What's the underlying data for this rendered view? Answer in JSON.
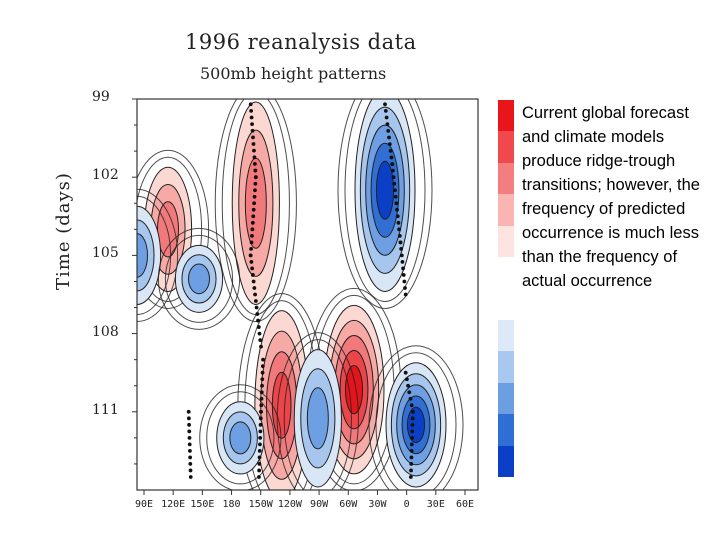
{
  "chart_data": {
    "type": "heatmap",
    "title": "1996 reanalysis data",
    "subtitle": "500mb height patterns",
    "xlabel": "",
    "ylabel": "Time (days)",
    "x_tick_labels": [
      "90E",
      "120E",
      "150E",
      "180",
      "150W",
      "120W",
      "90W",
      "60W",
      "30W",
      "0",
      "30E",
      "60E"
    ],
    "y_tick_labels": [
      "99",
      "102",
      "105",
      "108",
      "111"
    ],
    "ylim": [
      99,
      114
    ],
    "colorbar_colors": [
      "#e8151a",
      "#f0484c",
      "#f37e80",
      "#f9b5b2",
      "#fde4e0",
      "#ffffff",
      "#ffffff",
      "#dde9f7",
      "#a9c8ef",
      "#6b9fe2",
      "#2f6ed3",
      "#0b3fc8"
    ],
    "features": [
      {
        "sign": "positive",
        "lon": 205,
        "day_start": 99.5,
        "day_end": 106.5,
        "strength": 3
      },
      {
        "sign": "positive",
        "lon": 230,
        "day_start": 107.5,
        "day_end": 114,
        "strength": 4
      },
      {
        "sign": "positive",
        "lon": 300,
        "day_start": 107.3,
        "day_end": 113,
        "strength": 5
      },
      {
        "sign": "positive",
        "lon": 120,
        "day_start": 102,
        "day_end": 106,
        "strength": 3
      },
      {
        "sign": "positive",
        "lon": 20,
        "day_start": 100.5,
        "day_end": 106,
        "strength": 3
      },
      {
        "sign": "positive",
        "lon": 5,
        "day_start": 106.8,
        "day_end": 107.6,
        "strength": 2
      },
      {
        "sign": "negative",
        "lon": 330,
        "day_start": 99,
        "day_end": 106,
        "strength": 5
      },
      {
        "sign": "negative",
        "lon": 360,
        "day_start": 109.5,
        "day_end": 113.5,
        "strength": 5
      },
      {
        "sign": "negative",
        "lon": 265,
        "day_start": 109,
        "day_end": 113.5,
        "strength": 3
      },
      {
        "sign": "negative",
        "lon": 90,
        "day_start": 103.5,
        "day_end": 106.5,
        "strength": 3
      },
      {
        "sign": "negative",
        "lon": 150,
        "day_start": 105,
        "day_end": 106.8,
        "strength": 3
      },
      {
        "sign": "negative",
        "lon": 190,
        "day_start": 111,
        "day_end": 113,
        "strength": 3
      }
    ],
    "dotted_tracks": [
      {
        "name": "ridge-track-1",
        "points": [
          [
            200,
            99.2
          ],
          [
            205,
            102
          ],
          [
            200,
            105
          ],
          [
            210,
            108.5
          ]
        ]
      },
      {
        "name": "trough-track-1",
        "points": [
          [
            330,
            99.2
          ],
          [
            337,
            101.5
          ],
          [
            345,
            104.5
          ],
          [
            350,
            106.5
          ]
        ]
      },
      {
        "name": "ridge-track-2",
        "points": [
          [
            212,
            109
          ],
          [
            210,
            111
          ],
          [
            208,
            113.5
          ]
        ]
      },
      {
        "name": "trough-track-2",
        "points": [
          [
            350,
            109.5
          ],
          [
            357,
            111
          ],
          [
            355,
            113.5
          ]
        ]
      },
      {
        "name": "ridge-track-3",
        "points": [
          [
            140,
            111
          ],
          [
            142,
            113.5
          ]
        ]
      }
    ]
  },
  "note": "Current global forecast and climate models produce ridge-trough transitions; however, the frequency of predicted occurrence is much less than the frequency of actual occurrence"
}
